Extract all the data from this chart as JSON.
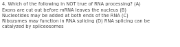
{
  "text": "4. Which of the following in NOT true of RNA processing? (A)\nExons are cut out before mRNA leaves the nucleus (B)\nNucleotides may be added at both ends of the RNA (C)\nRibozymes may function in RNA splicing (D) RNA splicing can be\ncatalyzed by spliceosomes",
  "background_color": "#ffffff",
  "text_color": "#444444",
  "font_size": 4.8,
  "figwidth": 2.62,
  "figheight": 0.69,
  "dpi": 100
}
